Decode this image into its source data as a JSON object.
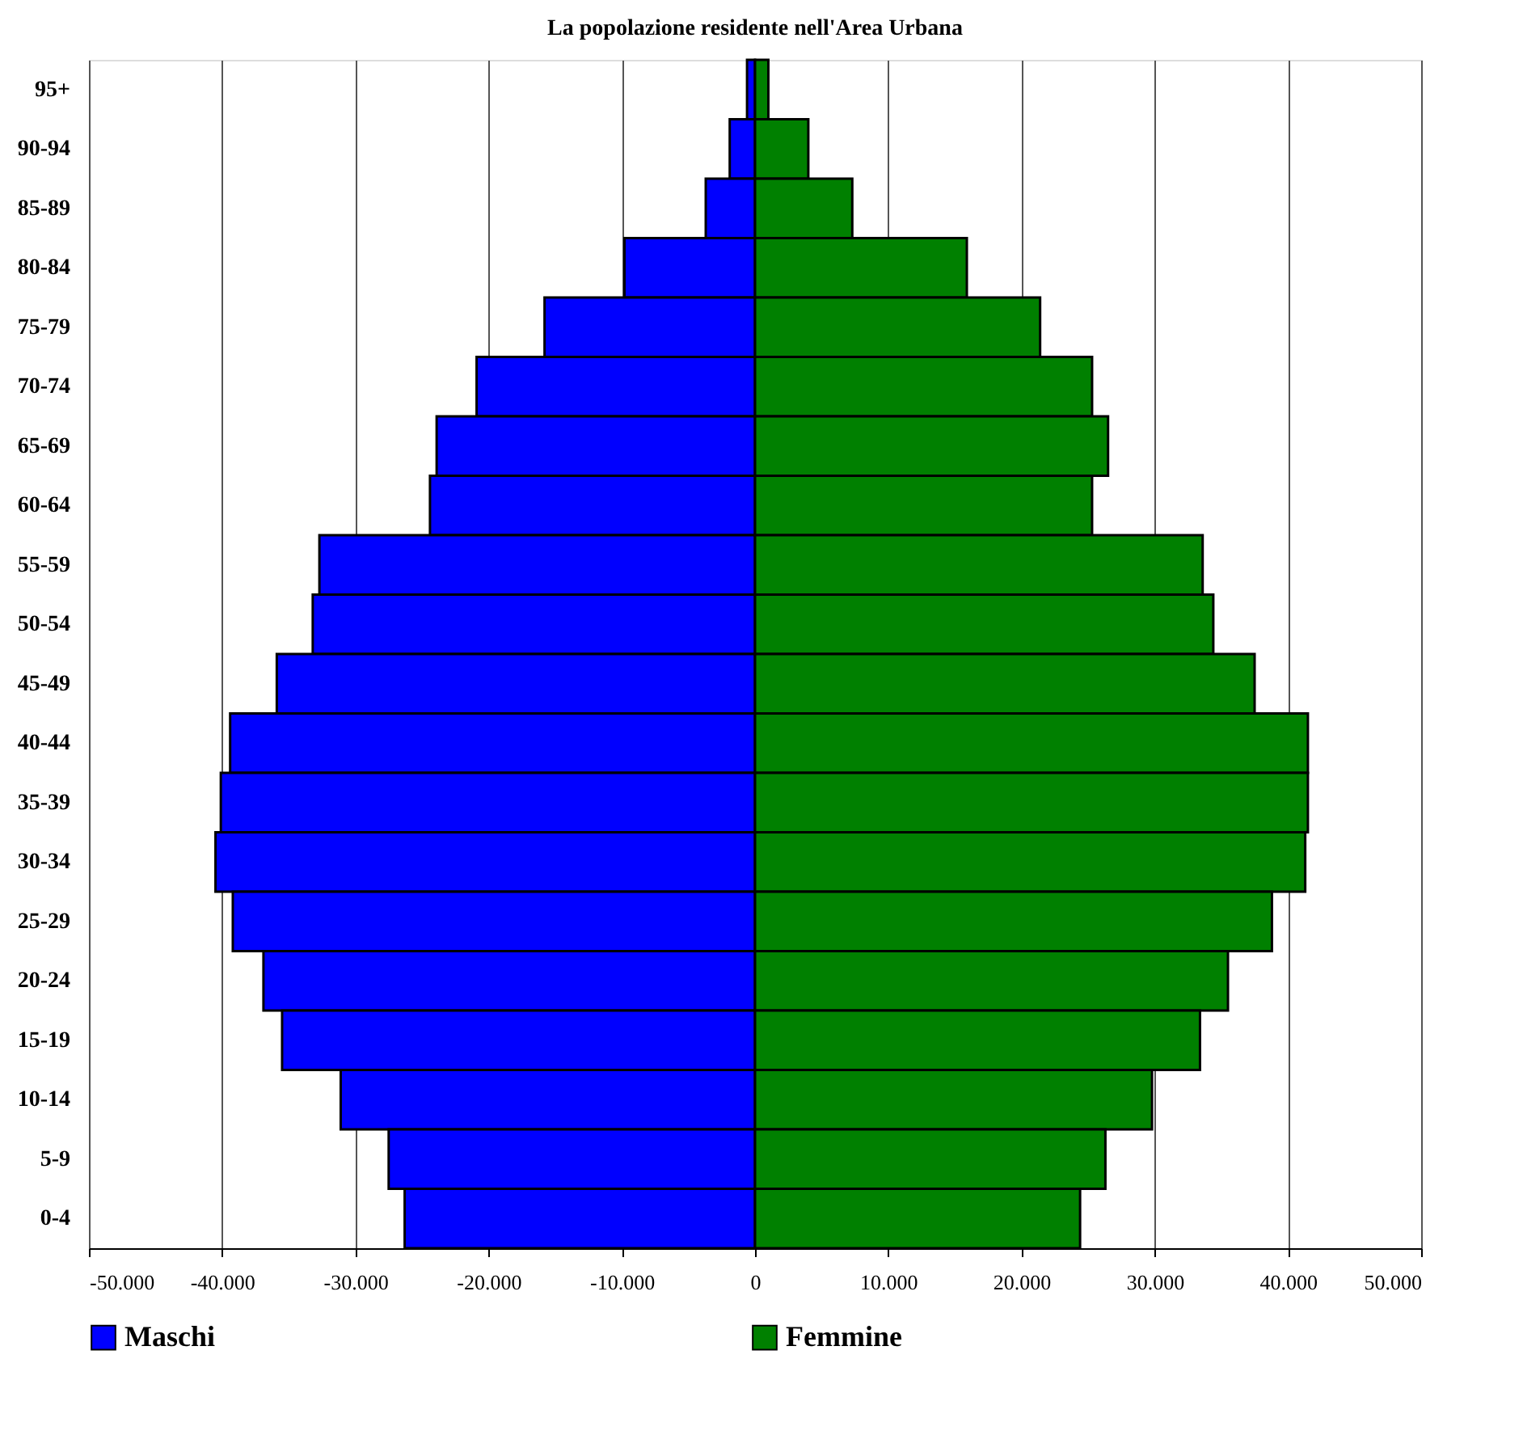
{
  "chart_data": {
    "type": "bar",
    "orientation": "horizontal",
    "title": "La popolazione residente nell'Area Urbana",
    "categories": [
      "95+",
      "90-94",
      "85-89",
      "80-84",
      "75-79",
      "70-74",
      "65-69",
      "60-64",
      "55-59",
      "50-54",
      "45-49",
      "40-44",
      "35-39",
      "30-34",
      "25-29",
      "20-24",
      "15-19",
      "10-14",
      "5-9",
      "0-4"
    ],
    "series": [
      {
        "name": "Maschi",
        "color": "#0000ff",
        "values": [
          -600,
          -1900,
          -3700,
          -9800,
          -15800,
          -20900,
          -23900,
          -24400,
          -32700,
          -33200,
          -35900,
          -39400,
          -40100,
          -40500,
          -39200,
          -36900,
          -35500,
          -31100,
          -27500,
          -26300
        ]
      },
      {
        "name": "Femmine",
        "color": "#008000",
        "values": [
          1000,
          4000,
          7300,
          15900,
          21400,
          25300,
          26500,
          25300,
          33600,
          34400,
          37500,
          41500,
          41500,
          41300,
          38800,
          35500,
          33400,
          29800,
          26300,
          24400
        ]
      }
    ],
    "xlim": [
      -50000,
      50000
    ],
    "xticks": [
      {
        "value": -50000,
        "label": "-50.000"
      },
      {
        "value": -40000,
        "label": "-40.000"
      },
      {
        "value": -30000,
        "label": "-30.000"
      },
      {
        "value": -20000,
        "label": "-20.000"
      },
      {
        "value": -10000,
        "label": "-10.000"
      },
      0,
      {
        "value": 10000,
        "label": "10.000"
      },
      {
        "value": 20000,
        "label": "20.000"
      },
      {
        "value": 30000,
        "label": "30.000"
      },
      {
        "value": 40000,
        "label": "40.000"
      },
      {
        "value": 50000,
        "label": "50.000"
      }
    ],
    "stacked": true,
    "grid": "x",
    "legend": "bottom"
  }
}
